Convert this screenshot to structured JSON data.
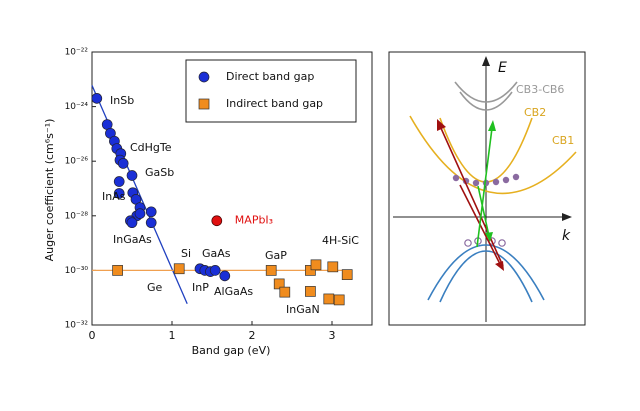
{
  "chart_data": {
    "type": "scatter",
    "yscale": "log",
    "xlabel": "Band gap (eV)",
    "ylabel": "Auger coefficient (cm⁶s⁻¹)",
    "xlim": [
      0,
      3.5
    ],
    "xticks": [
      0,
      1,
      2,
      3
    ],
    "ylim": [
      1e-32,
      1e-22
    ],
    "yticks": [
      {
        "value": 1e-32,
        "label": "10⁻³²"
      },
      {
        "value": 1e-30,
        "label": "10⁻³⁰"
      },
      {
        "value": 1e-28,
        "label": "10⁻²⁸"
      },
      {
        "value": 1e-26,
        "label": "10⁻²⁶"
      },
      {
        "value": 1e-24,
        "label": "10⁻²⁴"
      },
      {
        "value": 1e-22,
        "label": "10⁻²²"
      }
    ],
    "legend": "upper right",
    "series": [
      {
        "name": "Direct band gap",
        "color": "#1a2fd6",
        "marker": "circle",
        "x": [
          0.06,
          0.19,
          0.23,
          0.28,
          0.31,
          0.36,
          0.35,
          0.39,
          0.5,
          0.34,
          0.51,
          0.34,
          0.55,
          0.6,
          0.74,
          0.56,
          0.6,
          0.48,
          0.74,
          0.5,
          1.35,
          1.41,
          1.48,
          1.54,
          1.66
        ],
        "values": [
          2e-24,
          2.2e-25,
          1.05e-25,
          5.4e-26,
          2.9e-26,
          1.9e-26,
          1.1e-26,
          8.3e-27,
          3e-27,
          1.8e-27,
          7e-28,
          6.6e-28,
          4e-28,
          2e-28,
          1.4e-28,
          1e-28,
          1.2e-28,
          6.6e-29,
          5.6e-29,
          5.6e-29,
          1.15e-30,
          1e-30,
          9e-31,
          1e-30,
          6.3e-31
        ]
      },
      {
        "name": "Indirect band gap",
        "color": "#f08c1e",
        "marker": "square",
        "x": [
          0.32,
          1.09,
          2.24,
          2.34,
          2.41,
          2.73,
          2.8,
          2.73,
          3.01,
          3.19,
          2.96,
          3.09
        ],
        "values": [
          1e-30,
          1.15e-30,
          1e-30,
          3.2e-31,
          1.6e-31,
          1e-30,
          1.6e-30,
          1.7e-31,
          1.35e-30,
          7e-31,
          9e-32,
          8.3e-32
        ]
      }
    ],
    "fit_lines": [
      {
        "color": "#2040c0",
        "x": [
          0,
          1.19
        ],
        "values": [
          6e-24,
          6e-32
        ]
      },
      {
        "color": "#f0a050",
        "x": [
          0,
          3.25
        ],
        "values": [
          1e-30,
          1e-30
        ]
      }
    ],
    "highlight": {
      "label": "MAPbI₃",
      "color": "#e01010",
      "x": 1.56,
      "value": 6.6e-29
    },
    "annotations": [
      "InSb",
      "CdHgTe",
      "GaSb",
      "InAs",
      "InGaAs",
      "Si",
      "GaAs",
      "GaP",
      "4H-SiC",
      "Ge",
      "InP",
      "AlGaAs",
      "InGaN"
    ]
  },
  "diagram": {
    "axis_labels": [
      "E",
      "k"
    ],
    "band_labels": [
      "CB3-CB6",
      "CB2",
      "CB1"
    ]
  }
}
